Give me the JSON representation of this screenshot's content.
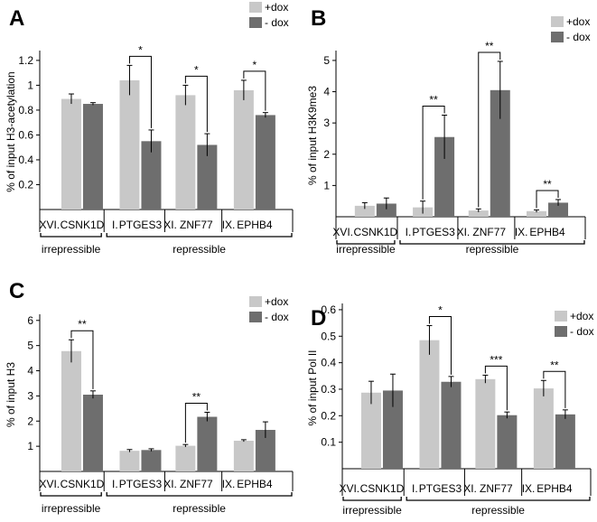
{
  "chart_data": [
    {
      "type": "bar",
      "panel": "A",
      "ylabel": "% of input H3-acetylation",
      "ylim": [
        0,
        1.25
      ],
      "yticks": [
        0.2,
        0.4,
        0.6,
        0.8,
        1,
        1.2
      ],
      "ytick_labels": [
        "0.2",
        "0.4",
        "0.6",
        "0.8",
        "1",
        "1.2"
      ],
      "categories": [
        "CSNK1D",
        "PTGES3",
        "ZNF77",
        "EPHB4"
      ],
      "category_prefixes": [
        "XVI.",
        "I.",
        "XI.",
        "IX."
      ],
      "groups": [
        "irrepressible",
        "repressible"
      ],
      "series": [
        {
          "name": "+dox",
          "color": "#c8c8c8",
          "values": [
            0.89,
            1.04,
            0.92,
            0.96
          ],
          "errors": [
            0.04,
            0.12,
            0.08,
            0.08
          ]
        },
        {
          "name": "- dox",
          "color": "#6e6e6e",
          "values": [
            0.85,
            0.55,
            0.52,
            0.76
          ],
          "errors": [
            0.01,
            0.09,
            0.09,
            0.02
          ]
        }
      ],
      "significance": [
        "",
        "*",
        "*",
        "*"
      ]
    },
    {
      "type": "bar",
      "panel": "B",
      "ylabel": "% of input H3K9me3",
      "ylim": [
        0,
        5.2
      ],
      "yticks": [
        1,
        2,
        3,
        4,
        5
      ],
      "ytick_labels": [
        "1",
        "2",
        "3",
        "4",
        "5"
      ],
      "categories": [
        "CSNK1D",
        "PTGES3",
        "ZNF77",
        "EPHB4"
      ],
      "category_prefixes": [
        "XVI.",
        "I.",
        "XI.",
        "IX."
      ],
      "groups": [
        "irrepressible",
        "repressible"
      ],
      "series": [
        {
          "name": "+dox",
          "color": "#c8c8c8",
          "values": [
            0.35,
            0.3,
            0.2,
            0.18
          ],
          "errors": [
            0.1,
            0.2,
            0.05,
            0.04
          ]
        },
        {
          "name": "- dox",
          "color": "#6e6e6e",
          "values": [
            0.42,
            2.55,
            4.05,
            0.45
          ],
          "errors": [
            0.18,
            0.7,
            0.92,
            0.1
          ]
        }
      ],
      "significance": [
        "",
        "**",
        "**",
        "**"
      ]
    },
    {
      "type": "bar",
      "panel": "C",
      "ylabel": "% of input H3",
      "ylim": [
        0,
        6.1
      ],
      "yticks": [
        1,
        2,
        3,
        4,
        5,
        6
      ],
      "ytick_labels": [
        "1",
        "2",
        "3",
        "4",
        "5",
        "6"
      ],
      "categories": [
        "CSNK1D",
        "PTGES3",
        "ZNF77",
        "EPHB4"
      ],
      "category_prefixes": [
        "XVI.",
        "I.",
        "XI.",
        "IX."
      ],
      "groups": [
        "irrepressible",
        "repressible"
      ],
      "series": [
        {
          "name": "+dox",
          "color": "#c8c8c8",
          "values": [
            4.78,
            0.82,
            1.02,
            1.22
          ],
          "errors": [
            0.45,
            0.05,
            0.05,
            0.04
          ]
        },
        {
          "name": "- dox",
          "color": "#6e6e6e",
          "values": [
            3.05,
            0.85,
            2.17,
            1.65
          ],
          "errors": [
            0.15,
            0.05,
            0.18,
            0.32
          ]
        }
      ],
      "significance": [
        "**",
        "",
        "**",
        ""
      ]
    },
    {
      "type": "bar",
      "panel": "D",
      "ylabel": "% of input  Pol II",
      "ylim": [
        0,
        0.61
      ],
      "yticks": [
        0.1,
        0.2,
        0.3,
        0.4,
        0.5,
        0.6
      ],
      "ytick_labels": [
        "0.1",
        "0.2",
        "0.3",
        "0.4",
        "0.5",
        "0.6"
      ],
      "categories": [
        "CSNK1D",
        "PTGES3",
        "ZNF77",
        "EPHB4"
      ],
      "category_prefixes": [
        "XVI.",
        "I.",
        "XI.",
        "IX."
      ],
      "groups": [
        "irrepressible",
        "repressible"
      ],
      "series": [
        {
          "name": "+dox",
          "color": "#c8c8c8",
          "values": [
            0.287,
            0.485,
            0.338,
            0.303
          ],
          "errors": [
            0.043,
            0.055,
            0.015,
            0.03
          ]
        },
        {
          "name": "- dox",
          "color": "#6e6e6e",
          "values": [
            0.295,
            0.328,
            0.202,
            0.205
          ],
          "errors": [
            0.062,
            0.02,
            0.012,
            0.017
          ]
        }
      ],
      "significance": [
        "",
        "*",
        "***",
        "**"
      ]
    }
  ]
}
